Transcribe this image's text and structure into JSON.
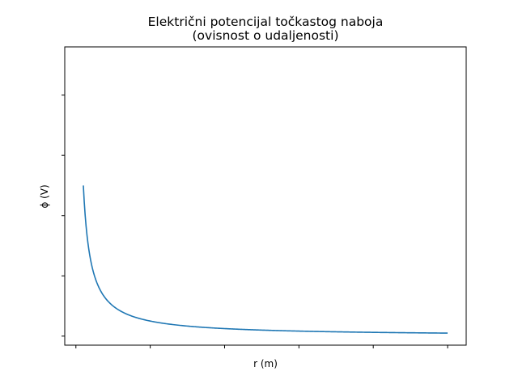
{
  "chart_data": {
    "type": "line",
    "title": "Električni potencijal točkastog naboja",
    "subtitle": "(ovisnost o udaljenosti)",
    "xlabel": "r (m)",
    "ylabel": "ϕ (V)",
    "x_ticks": [
      0.0,
      0.2,
      0.4,
      0.6,
      0.8,
      1.0
    ],
    "y_ticks": [
      0.0,
      0.2,
      0.4,
      0.6,
      0.8
    ],
    "xlim": [
      -0.03,
      1.05
    ],
    "ylim": [
      -0.03,
      0.96
    ],
    "tick_labels_visible": false,
    "grid": false,
    "series": [
      {
        "color": "#1f77b4",
        "function": "k/r",
        "k": 0.01,
        "x_range": [
          0.02,
          1.0
        ],
        "x": [
          0.02,
          0.025,
          0.03,
          0.04,
          0.05,
          0.07,
          0.1,
          0.15,
          0.2,
          0.3,
          0.4,
          0.5,
          0.6,
          0.7,
          0.8,
          0.9,
          1.0
        ],
        "y": [
          0.5,
          0.4,
          0.333,
          0.25,
          0.2,
          0.143,
          0.1,
          0.067,
          0.05,
          0.033,
          0.025,
          0.02,
          0.017,
          0.014,
          0.0125,
          0.011,
          0.01
        ]
      }
    ]
  }
}
